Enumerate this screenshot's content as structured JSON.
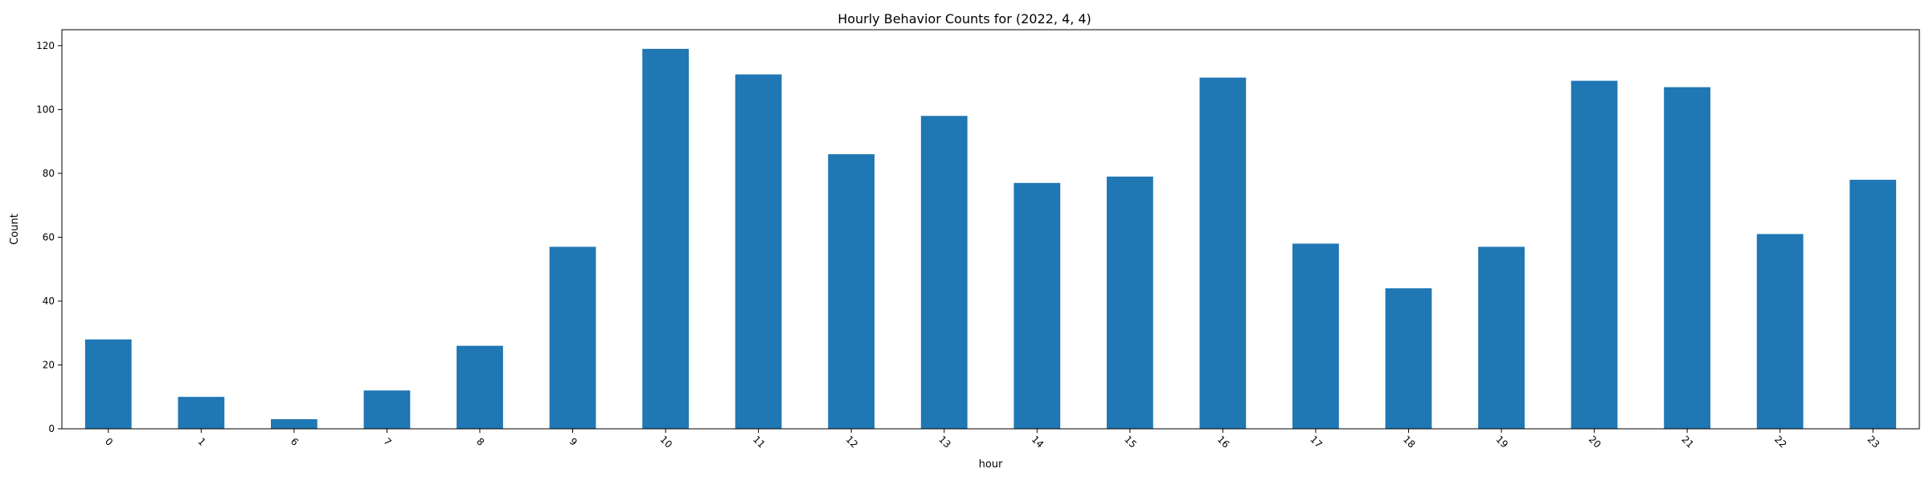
{
  "chart_data": {
    "type": "bar",
    "title": "Hourly Behavior Counts for (2022, 4, 4)",
    "xlabel": "hour",
    "ylabel": "Count",
    "categories": [
      "0",
      "1",
      "6",
      "7",
      "8",
      "9",
      "10",
      "11",
      "12",
      "13",
      "14",
      "15",
      "16",
      "17",
      "18",
      "19",
      "20",
      "21",
      "22",
      "23"
    ],
    "values": [
      28,
      10,
      3,
      12,
      26,
      57,
      119,
      111,
      86,
      98,
      77,
      79,
      110,
      58,
      44,
      57,
      109,
      107,
      61,
      78
    ],
    "ylim": [
      0,
      125
    ],
    "yticks": [
      0,
      20,
      40,
      60,
      80,
      100,
      120
    ],
    "bar_color": "#1f77b4",
    "grid": false,
    "legend": "none"
  }
}
